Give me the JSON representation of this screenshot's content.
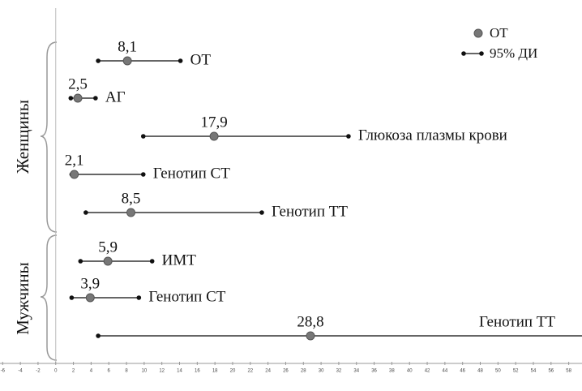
{
  "chart_data": {
    "type": "forest",
    "groups": [
      {
        "name": "Женщины",
        "rows": [
          0,
          4
        ]
      },
      {
        "name": "Мужчины",
        "rows": [
          5,
          7
        ]
      }
    ],
    "categories": [
      "ОТ",
      "АГ",
      "Глюкоза плазмы крови",
      "Генотип СТ",
      "Генотип ТТ",
      "ИМТ",
      "Генотип СТ",
      "Генотип ТТ"
    ],
    "values": [
      8.1,
      2.5,
      17.9,
      2.1,
      8.5,
      5.9,
      3.9,
      28.8
    ],
    "value_labels": [
      "8,1",
      "2,5",
      "17,9",
      "2,1",
      "8,5",
      "5,9",
      "3,9",
      "28,8"
    ],
    "ci_low": [
      4.8,
      1.7,
      9.9,
      1.8,
      3.4,
      2.8,
      1.8,
      4.8
    ],
    "ci_high": [
      14.1,
      4.5,
      33.1,
      9.9,
      23.3,
      10.9,
      9.4,
      59.5
    ],
    "legend": {
      "point": "ОТ",
      "interval": "95% ДИ"
    },
    "point_color": "#777777",
    "xlim": [
      -6.3,
      59.5
    ],
    "xticks": [
      -6,
      -4,
      -2,
      0,
      2,
      4,
      6,
      8,
      10,
      12,
      14,
      16,
      18,
      20,
      22,
      24,
      26,
      28,
      30,
      32,
      34,
      36,
      38,
      40,
      42,
      44,
      46,
      48,
      50,
      52,
      54,
      56,
      58
    ]
  }
}
